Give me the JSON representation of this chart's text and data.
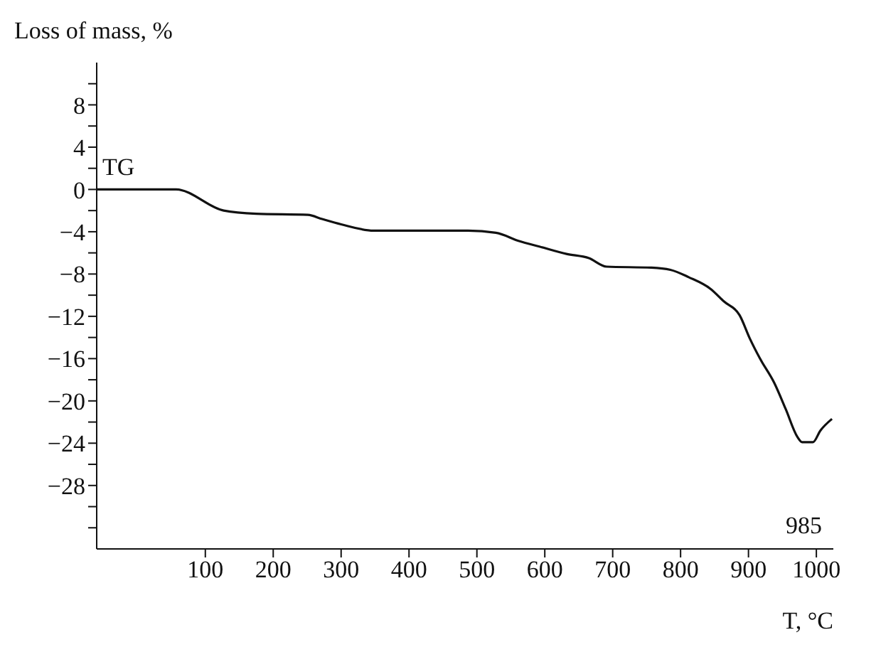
{
  "chart_data": {
    "type": "line",
    "ylabel": "Loss of mass, %",
    "xlabel": "T, °C",
    "xlim": [
      -60,
      1025
    ],
    "xticks": [
      100,
      200,
      300,
      400,
      500,
      600,
      700,
      800,
      900,
      1000
    ],
    "ylim": [
      -34,
      12
    ],
    "yticks": [
      {
        "value": 10,
        "label": null
      },
      {
        "value": 8,
        "label": "8"
      },
      {
        "value": 6,
        "label": null
      },
      {
        "value": 4,
        "label": "4"
      },
      {
        "value": 2,
        "label": null
      },
      {
        "value": 0,
        "label": "0"
      },
      {
        "value": -2,
        "label": null
      },
      {
        "value": -4,
        "label": "−4"
      },
      {
        "value": -6,
        "label": null
      },
      {
        "value": -8,
        "label": "−8"
      },
      {
        "value": -10,
        "label": null
      },
      {
        "value": -12,
        "label": "−12"
      },
      {
        "value": -14,
        "label": null
      },
      {
        "value": -16,
        "label": "−16"
      },
      {
        "value": -18,
        "label": null
      },
      {
        "value": -20,
        "label": "−20"
      },
      {
        "value": -22,
        "label": null
      },
      {
        "value": -24,
        "label": "−24"
      },
      {
        "value": -26,
        "label": null
      },
      {
        "value": -28,
        "label": "−28"
      },
      {
        "value": -30,
        "label": null
      },
      {
        "value": -32,
        "label": null
      }
    ],
    "x": [
      -60,
      57,
      127,
      175,
      251,
      272,
      300,
      348,
      487,
      528,
      563,
      592,
      632,
      665,
      691,
      757,
      785,
      812,
      844,
      864,
      887,
      902,
      917,
      938,
      955,
      972,
      979,
      995,
      1006,
      1023
    ],
    "series": [
      {
        "name": "TG",
        "color": "#111111",
        "values": [
          0,
          0,
          -2.0,
          -2.3,
          -2.4,
          -2.8,
          -3.3,
          -3.9,
          -3.9,
          -4.1,
          -4.9,
          -5.4,
          -6.1,
          -6.5,
          -7.3,
          -7.4,
          -7.6,
          -8.3,
          -9.4,
          -10.6,
          -11.9,
          -14.1,
          -16.0,
          -18.3,
          -20.8,
          -23.4,
          -23.9,
          -23.9,
          -22.8,
          -21.7
        ]
      }
    ],
    "annotations": [
      "985"
    ],
    "grid": false,
    "legend": false,
    "marker": "none",
    "line_style": "solid"
  }
}
